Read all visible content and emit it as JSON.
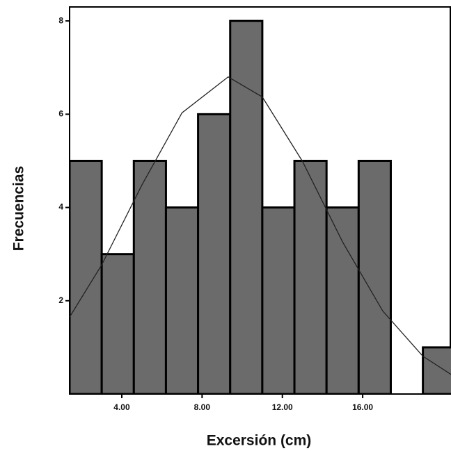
{
  "chart_data": {
    "type": "histogram",
    "x_label": "Excersión (cm)",
    "y_label": "Frecuencias",
    "bins": [
      1.4,
      3.0,
      4.6,
      6.2,
      7.8,
      9.4,
      11.0,
      12.6,
      14.2,
      15.8,
      17.4,
      19.0,
      20.6
    ],
    "counts": [
      5,
      3,
      5,
      4,
      6,
      8,
      4,
      5,
      4,
      5,
      0,
      1
    ],
    "color": "#6b6b6b",
    "curve": {
      "x": [
        1.4,
        3,
        5,
        7,
        9.3,
        11,
        13,
        15,
        17,
        19,
        20.4
      ],
      "y": [
        1.65,
        2.77,
        4.48,
        6.03,
        6.8,
        6.37,
        4.99,
        3.26,
        1.78,
        0.81,
        0.42
      ]
    },
    "xlim": [
      1.4,
      20.4
    ],
    "ylim": [
      0,
      8.3
    ],
    "xticks": [
      {
        "value": 4,
        "label": "4.00"
      },
      {
        "value": 8,
        "label": "8.00"
      },
      {
        "value": 12,
        "label": "12.00"
      },
      {
        "value": 16,
        "label": "16.00"
      }
    ],
    "yticks": [
      2,
      4,
      6,
      8
    ]
  }
}
